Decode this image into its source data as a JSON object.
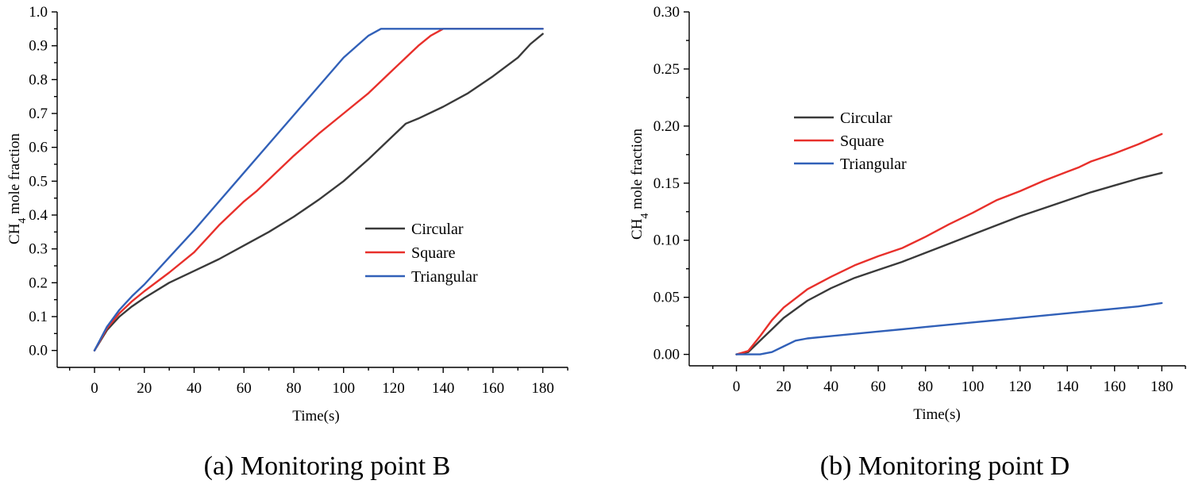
{
  "chart_data": [
    {
      "type": "line",
      "title": "",
      "caption": "(a) Monitoring point B",
      "xlabel": "Time(s)",
      "ylabel": "CH4 mole fraction",
      "ylabel_main": "CH",
      "ylabel_sub": "4",
      "ylabel_rest": " mole fraction",
      "xlim": [
        -15,
        190
      ],
      "ylim": [
        -0.05,
        1.0
      ],
      "xticks": [
        0,
        20,
        40,
        60,
        80,
        100,
        120,
        140,
        160,
        180
      ],
      "xtick_labels": [
        "0",
        "20",
        "40",
        "60",
        "80",
        "100",
        "120",
        "140",
        "160",
        "180"
      ],
      "yticks": [
        0.0,
        0.1,
        0.2,
        0.3,
        0.4,
        0.5,
        0.6,
        0.7,
        0.8,
        0.9,
        1.0
      ],
      "ytick_labels": [
        "0.0",
        "0.1",
        "0.2",
        "0.3",
        "0.4",
        "0.5",
        "0.6",
        "0.7",
        "0.8",
        "0.9",
        "1.0"
      ],
      "legend_position": "center-right",
      "series": [
        {
          "name": "Circular",
          "color": "#3a3a3a",
          "x": [
            0,
            5,
            10,
            15,
            20,
            30,
            40,
            50,
            60,
            70,
            80,
            90,
            100,
            110,
            120,
            125,
            130,
            140,
            150,
            160,
            170,
            175,
            180
          ],
          "y": [
            0.0,
            0.06,
            0.1,
            0.13,
            0.155,
            0.2,
            0.235,
            0.27,
            0.31,
            0.35,
            0.395,
            0.445,
            0.5,
            0.565,
            0.635,
            0.67,
            0.685,
            0.72,
            0.76,
            0.81,
            0.865,
            0.905,
            0.935
          ]
        },
        {
          "name": "Square",
          "color": "#e8302b",
          "x": [
            0,
            5,
            10,
            15,
            20,
            30,
            40,
            45,
            50,
            60,
            65,
            70,
            80,
            90,
            100,
            110,
            120,
            130,
            135,
            140,
            180
          ],
          "y": [
            0.0,
            0.065,
            0.11,
            0.145,
            0.175,
            0.23,
            0.29,
            0.33,
            0.37,
            0.44,
            0.47,
            0.505,
            0.575,
            0.64,
            0.7,
            0.76,
            0.83,
            0.9,
            0.93,
            0.95,
            0.95
          ]
        },
        {
          "name": "Triangular",
          "color": "#3160b8",
          "x": [
            0,
            5,
            10,
            15,
            20,
            30,
            40,
            50,
            60,
            70,
            80,
            90,
            100,
            110,
            115,
            180
          ],
          "y": [
            0.0,
            0.07,
            0.12,
            0.16,
            0.195,
            0.275,
            0.355,
            0.44,
            0.525,
            0.61,
            0.695,
            0.78,
            0.865,
            0.93,
            0.95,
            0.95
          ]
        }
      ]
    },
    {
      "type": "line",
      "title": "",
      "caption": "(b) Monitoring point D",
      "xlabel": "Time(s)",
      "ylabel": "CH4 mole fraction",
      "ylabel_main": "CH",
      "ylabel_sub": "4",
      "ylabel_rest": " mole fraction",
      "xlim": [
        -20,
        190
      ],
      "ylim": [
        -0.01,
        0.3
      ],
      "xticks": [
        0,
        20,
        40,
        60,
        80,
        100,
        120,
        140,
        160,
        180
      ],
      "xtick_labels": [
        "0",
        "20",
        "40",
        "60",
        "80",
        "100",
        "120",
        "140",
        "160",
        "180"
      ],
      "yticks": [
        0.0,
        0.05,
        0.1,
        0.15,
        0.2,
        0.25,
        0.3
      ],
      "ytick_labels": [
        "0.00",
        "0.05",
        "0.10",
        "0.15",
        "0.20",
        "0.25",
        "0.30"
      ],
      "legend_position": "top-left",
      "series": [
        {
          "name": "Circular",
          "color": "#3a3a3a",
          "x": [
            0,
            5,
            10,
            15,
            20,
            30,
            40,
            50,
            60,
            70,
            80,
            90,
            100,
            110,
            120,
            130,
            140,
            150,
            160,
            170,
            180
          ],
          "y": [
            0.0,
            0.002,
            0.012,
            0.022,
            0.032,
            0.047,
            0.058,
            0.067,
            0.074,
            0.081,
            0.089,
            0.097,
            0.105,
            0.113,
            0.121,
            0.128,
            0.135,
            0.142,
            0.148,
            0.154,
            0.159
          ]
        },
        {
          "name": "Square",
          "color": "#e8302b",
          "x": [
            0,
            5,
            10,
            15,
            20,
            30,
            40,
            50,
            60,
            70,
            80,
            90,
            100,
            110,
            120,
            130,
            140,
            145,
            150,
            160,
            170,
            180
          ],
          "y": [
            0.0,
            0.003,
            0.016,
            0.03,
            0.041,
            0.057,
            0.068,
            0.078,
            0.086,
            0.093,
            0.103,
            0.114,
            0.124,
            0.135,
            0.143,
            0.152,
            0.16,
            0.164,
            0.169,
            0.176,
            0.184,
            0.193
          ]
        },
        {
          "name": "Triangular",
          "color": "#3160b8",
          "x": [
            0,
            5,
            10,
            15,
            20,
            25,
            30,
            40,
            50,
            60,
            70,
            80,
            90,
            100,
            110,
            120,
            130,
            140,
            150,
            160,
            170,
            180
          ],
          "y": [
            0.0,
            0.0,
            0.0,
            0.002,
            0.007,
            0.012,
            0.014,
            0.016,
            0.018,
            0.02,
            0.022,
            0.024,
            0.026,
            0.028,
            0.03,
            0.032,
            0.034,
            0.036,
            0.038,
            0.04,
            0.042,
            0.045
          ]
        }
      ]
    }
  ]
}
